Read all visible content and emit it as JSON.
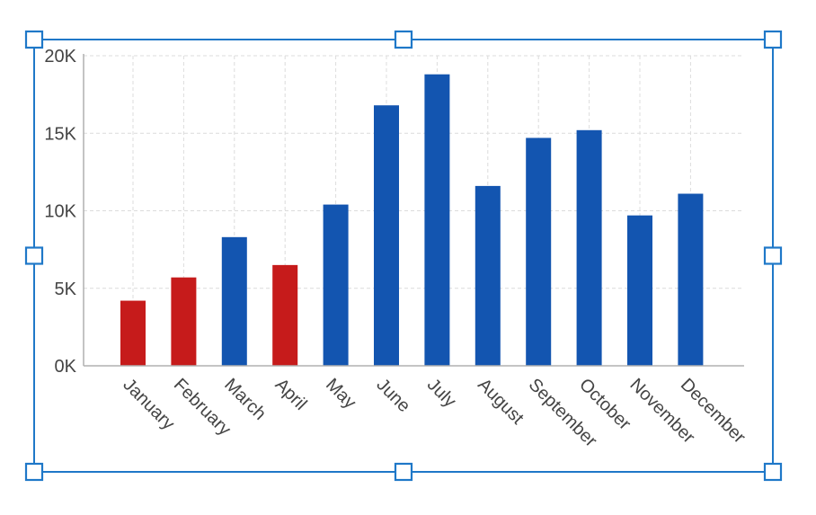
{
  "chart_data": {
    "type": "bar",
    "categories": [
      "January",
      "February",
      "March",
      "April",
      "May",
      "June",
      "July",
      "August",
      "September",
      "October",
      "November",
      "December"
    ],
    "values": [
      4200,
      5700,
      8300,
      6500,
      10400,
      16800,
      18800,
      11600,
      14700,
      15200,
      9700,
      11100
    ],
    "bar_colors": [
      "#c61b1b",
      "#c61b1b",
      "#1355b0",
      "#c61b1b",
      "#1355b0",
      "#1355b0",
      "#1355b0",
      "#1355b0",
      "#1355b0",
      "#1355b0",
      "#1355b0",
      "#1355b0"
    ],
    "ylim": [
      0,
      20000
    ],
    "yticks": [
      0,
      5000,
      10000,
      15000,
      20000
    ],
    "ytick_labels": [
      "0K",
      "5K",
      "10K",
      "15K",
      "20K"
    ],
    "grid": true,
    "legend": "none",
    "title": "",
    "xlabel": "",
    "ylabel": ""
  },
  "selection": {
    "color": "#1f78c8"
  }
}
